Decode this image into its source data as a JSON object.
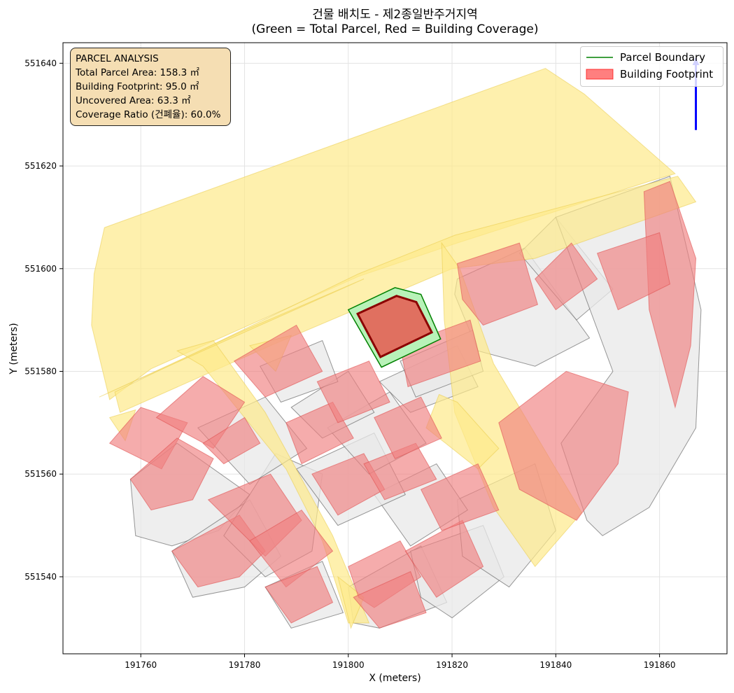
{
  "chart_data": {
    "type": "map",
    "title": "건물 배치도 - 제2종일반주거지역",
    "subtitle": "(Green = Total Parcel, Red = Building Coverage)",
    "xlabel": "X (meters)",
    "ylabel": "Y (meters)",
    "xlim": [
      191745,
      191873
    ],
    "ylim": [
      551525,
      551644
    ],
    "xticks": [
      191760,
      191780,
      191800,
      191820,
      191840,
      191860
    ],
    "yticks": [
      551540,
      551560,
      551580,
      551600,
      551620,
      551640
    ],
    "grid": true,
    "legend_position": "top-right",
    "legend": [
      {
        "label": "Parcel Boundary",
        "kind": "line",
        "color": "#008000"
      },
      {
        "label": "Building Footprint",
        "kind": "patch",
        "color": "#ff0000"
      }
    ],
    "info_box": {
      "lines": [
        "PARCEL ANALYSIS",
        "Total Parcel Area: 158.3 ㎡",
        "Building Footprint: 95.0 ㎡",
        "Uncovered Area: 63.3 ㎡",
        "Coverage Ratio (건폐율): 60.0%"
      ]
    },
    "colors": {
      "road": "#fde98a",
      "surrounding_parcel": "#e8e8e8",
      "surrounding_building": "#f08080",
      "target_parcel_fill": "#b8f2b8",
      "target_parcel_edge": "#008000",
      "target_building_fill": "#e07060",
      "target_building_edge": "#8b0000",
      "north_arrow": "#0000ff"
    },
    "target_parcel": [
      [
        191800,
        551592
      ],
      [
        191809,
        551596.3
      ],
      [
        191814,
        551595
      ],
      [
        191817.8,
        551586.3
      ],
      [
        191806.4,
        551580.8
      ]
    ],
    "target_building": [
      [
        191801.8,
        551591.2
      ],
      [
        191809.3,
        551594.7
      ],
      [
        191813.1,
        551593.5
      ],
      [
        191816.1,
        551587.6
      ],
      [
        191806.2,
        551582.8
      ]
    ],
    "roads": [
      [
        [
          191750.5,
          551589
        ],
        [
          191751,
          551599
        ],
        [
          191753,
          551608
        ],
        [
          191838,
          551639
        ],
        [
          191845.5,
          551634
        ],
        [
          191863,
          551618.5
        ],
        [
          191858,
          551617
        ],
        [
          191821,
          551605
        ],
        [
          191802,
          551598.5
        ],
        [
          191762,
          551580.5
        ],
        [
          191754,
          551574.5
        ]
      ],
      [
        [
          191756,
          551572
        ],
        [
          191785,
          551585
        ],
        [
          191820,
          551600
        ],
        [
          191836,
          551602
        ],
        [
          191867,
          551613
        ],
        [
          191863.5,
          551618
        ],
        [
          191820.5,
          551606.5
        ],
        [
          191802,
          551599
        ],
        [
          191755,
          551576
        ]
      ],
      [
        [
          191818,
          551605
        ],
        [
          191821.5,
          551600
        ],
        [
          191828,
          551581.5
        ],
        [
          191845,
          551552.5
        ],
        [
          191836,
          551542
        ],
        [
          191828,
          551553.5
        ],
        [
          191820.5,
          551572
        ],
        [
          191818.5,
          551590
        ]
      ],
      [
        [
          191767,
          551584
        ],
        [
          191772,
          551581
        ],
        [
          191788,
          551561
        ],
        [
          191795,
          551547
        ],
        [
          191800,
          551531
        ],
        [
          191804,
          551531
        ],
        [
          191797,
          551548
        ],
        [
          191784,
          551572
        ],
        [
          191774,
          551586
        ]
      ],
      [
        [
          191817.5,
          551575.5
        ],
        [
          191821,
          551574
        ],
        [
          191829,
          551565
        ],
        [
          191825,
          551561
        ],
        [
          191815,
          551569
        ]
      ],
      [
        [
          191754,
          551571
        ],
        [
          191759,
          551572.5
        ],
        [
          191757,
          551566.5
        ]
      ],
      [
        [
          191781,
          551585
        ],
        [
          191789,
          551587
        ],
        [
          191786,
          551580
        ]
      ],
      [
        [
          191752,
          551575
        ],
        [
          191780,
          551588
        ],
        [
          191803,
          551598
        ]
      ],
      [
        [
          191800.5,
          551530
        ],
        [
          191803,
          551536
        ],
        [
          191798,
          551540
        ]
      ]
    ],
    "surrounding_parcels": [
      [
        [
          191821,
          551598
        ],
        [
          191834,
          551604
        ],
        [
          191846.5,
          551586.5
        ],
        [
          191836,
          551581
        ],
        [
          191825,
          551584
        ],
        [
          191820.5,
          551595
        ]
      ],
      [
        [
          191833,
          551603
        ],
        [
          191840,
          551610
        ],
        [
          191851,
          551596
        ],
        [
          191844,
          551590
        ]
      ],
      [
        [
          191840,
          551610
        ],
        [
          191862,
          551618
        ],
        [
          191868,
          551592
        ],
        [
          191867,
          551569
        ],
        [
          191858,
          551553.5
        ],
        [
          191849,
          551548
        ],
        [
          191846,
          551551
        ],
        [
          191841,
          551566
        ],
        [
          191851,
          551580
        ]
      ],
      [
        [
          191758,
          551559
        ],
        [
          191767,
          551566
        ],
        [
          191781,
          551556
        ],
        [
          191775,
          551549
        ],
        [
          191766,
          551546
        ],
        [
          191759,
          551548
        ]
      ],
      [
        [
          191766,
          551545
        ],
        [
          191781,
          551555
        ],
        [
          191787,
          551544
        ],
        [
          191780,
          551538
        ],
        [
          191770,
          551536
        ]
      ],
      [
        [
          191776,
          551548
        ],
        [
          191786,
          551564
        ],
        [
          191795,
          551560
        ],
        [
          191793,
          551545
        ],
        [
          191784,
          551540
        ]
      ],
      [
        [
          191784,
          551538
        ],
        [
          191795,
          551543
        ],
        [
          191799,
          551533
        ],
        [
          191789,
          551530
        ]
      ],
      [
        [
          191800,
          551538
        ],
        [
          191814,
          551546
        ],
        [
          191819,
          551535
        ],
        [
          191806,
          551530
        ],
        [
          191801,
          551531
        ]
      ],
      [
        [
          191812,
          551545
        ],
        [
          191826,
          551550
        ],
        [
          191830,
          551540
        ],
        [
          191820,
          551532
        ],
        [
          191814,
          551536
        ]
      ],
      [
        [
          191821,
          551555
        ],
        [
          191836,
          551562
        ],
        [
          191840,
          551549
        ],
        [
          191831,
          551538
        ],
        [
          191822,
          551544
        ]
      ],
      [
        [
          191805,
          551556
        ],
        [
          191817,
          551562
        ],
        [
          191823,
          551553
        ],
        [
          191812,
          551546
        ]
      ],
      [
        [
          191790,
          551561
        ],
        [
          191805,
          551568
        ],
        [
          191811,
          551556
        ],
        [
          191798,
          551550
        ]
      ],
      [
        [
          191771,
          551569
        ],
        [
          191784,
          551575
        ],
        [
          191792,
          551565
        ],
        [
          191781,
          551558
        ]
      ],
      [
        [
          191796,
          551569
        ],
        [
          191808,
          551576
        ],
        [
          191815,
          551566
        ],
        [
          191804,
          551560
        ]
      ],
      [
        [
          191806,
          551578
        ],
        [
          191821,
          551585
        ],
        [
          191825,
          551577
        ],
        [
          191812,
          551572
        ]
      ],
      [
        [
          191789,
          551573
        ],
        [
          191800,
          551580
        ],
        [
          191805,
          551572
        ],
        [
          191795,
          551567
        ]
      ],
      [
        [
          191783,
          551581
        ],
        [
          191795,
          551586
        ],
        [
          191798,
          551578
        ],
        [
          191787,
          551574
        ]
      ],
      [
        [
          191810,
          551582
        ],
        [
          191824,
          551588
        ],
        [
          191826,
          551580
        ],
        [
          191813,
          551575
        ]
      ]
    ],
    "surrounding_buildings": [
      [
        [
          191829,
          551570
        ],
        [
          191833,
          551557
        ],
        [
          191844,
          551551
        ],
        [
          191852,
          551562
        ],
        [
          191854,
          551576
        ],
        [
          191842,
          551580
        ]
      ],
      [
        [
          191857,
          551615
        ],
        [
          191862,
          551617
        ],
        [
          191867,
          551602
        ],
        [
          191866,
          551585
        ],
        [
          191863,
          551573
        ],
        [
          191858,
          551592
        ]
      ],
      [
        [
          191810,
          551585
        ],
        [
          191823.5,
          551590
        ],
        [
          191825.5,
          551582
        ],
        [
          191811.5,
          551577
        ]
      ],
      [
        [
          191821,
          551601
        ],
        [
          191833,
          551605
        ],
        [
          191836.5,
          551593
        ],
        [
          191826,
          551589
        ],
        [
          191822,
          551594
        ]
      ],
      [
        [
          191836,
          551598
        ],
        [
          191843,
          551605
        ],
        [
          191848,
          551598
        ],
        [
          191840,
          551592
        ]
      ],
      [
        [
          191848,
          551603
        ],
        [
          191860,
          551607
        ],
        [
          191862,
          551597
        ],
        [
          191852,
          551592
        ]
      ],
      [
        [
          191754,
          551566
        ],
        [
          191760,
          551573
        ],
        [
          191769,
          551570
        ],
        [
          191764,
          551561
        ]
      ],
      [
        [
          191758,
          551559
        ],
        [
          191767,
          551567
        ],
        [
          191774,
          551563
        ],
        [
          191770,
          551555
        ],
        [
          191762,
          551553
        ]
      ],
      [
        [
          191763,
          551571
        ],
        [
          191772,
          551579
        ],
        [
          191780,
          551574
        ],
        [
          191774,
          551565
        ]
      ],
      [
        [
          191766,
          551545
        ],
        [
          191779,
          551552
        ],
        [
          191784,
          551545
        ],
        [
          191779,
          551540
        ],
        [
          191771,
          551538
        ]
      ],
      [
        [
          191773,
          551555
        ],
        [
          191785,
          551560
        ],
        [
          191791,
          551551
        ],
        [
          191784,
          551544
        ]
      ],
      [
        [
          191781,
          551547
        ],
        [
          191791,
          551553
        ],
        [
          191797,
          551545
        ],
        [
          191788,
          551538
        ]
      ],
      [
        [
          191784,
          551538
        ],
        [
          191794,
          551542
        ],
        [
          191797,
          551535
        ],
        [
          191789,
          551531
        ]
      ],
      [
        [
          191793,
          551560
        ],
        [
          191803,
          551564
        ],
        [
          191807,
          551557
        ],
        [
          191798,
          551552
        ]
      ],
      [
        [
          191800,
          551542
        ],
        [
          191810,
          551547
        ],
        [
          191814,
          551540
        ],
        [
          191805,
          551534
        ],
        [
          191802,
          551536
        ]
      ],
      [
        [
          191801,
          551536
        ],
        [
          191812,
          551541
        ],
        [
          191815,
          551533
        ],
        [
          191806,
          551530
        ]
      ],
      [
        [
          191811,
          551545
        ],
        [
          191822,
          551551
        ],
        [
          191826,
          551542
        ],
        [
          191817,
          551536
        ]
      ],
      [
        [
          191814,
          551557
        ],
        [
          191825,
          551562
        ],
        [
          191829,
          551553
        ],
        [
          191818,
          551549
        ]
      ],
      [
        [
          191803,
          551562
        ],
        [
          191813,
          551566
        ],
        [
          191817,
          551559
        ],
        [
          191807,
          551555
        ]
      ],
      [
        [
          191788,
          551570
        ],
        [
          191797,
          551574
        ],
        [
          191801,
          551567
        ],
        [
          191791,
          551562
        ]
      ],
      [
        [
          191794,
          551578
        ],
        [
          191804,
          551582
        ],
        [
          191808,
          551574
        ],
        [
          191798,
          551570
        ]
      ],
      [
        [
          191778,
          551582
        ],
        [
          191790,
          551589
        ],
        [
          191795,
          551580
        ],
        [
          191784,
          551575
        ]
      ],
      [
        [
          191772,
          551566
        ],
        [
          191780,
          551571
        ],
        [
          191783,
          551566
        ],
        [
          191776,
          551562
        ]
      ],
      [
        [
          191805,
          551571
        ],
        [
          191814,
          551575
        ],
        [
          191818,
          551567
        ],
        [
          191809,
          551563
        ]
      ]
    ],
    "north_arrow": {
      "x": 191867,
      "y_start": 551627,
      "y_end": 551641
    }
  }
}
